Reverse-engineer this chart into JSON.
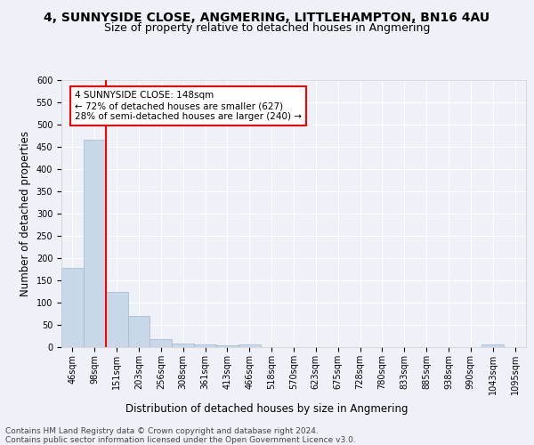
{
  "title": "4, SUNNYSIDE CLOSE, ANGMERING, LITTLEHAMPTON, BN16 4AU",
  "subtitle": "Size of property relative to detached houses in Angmering",
  "xlabel": "Distribution of detached houses by size in Angmering",
  "ylabel": "Number of detached properties",
  "bin_labels": [
    "46sqm",
    "98sqm",
    "151sqm",
    "203sqm",
    "256sqm",
    "308sqm",
    "361sqm",
    "413sqm",
    "466sqm",
    "518sqm",
    "570sqm",
    "623sqm",
    "675sqm",
    "728sqm",
    "780sqm",
    "833sqm",
    "885sqm",
    "938sqm",
    "990sqm",
    "1043sqm",
    "1095sqm"
  ],
  "bar_heights": [
    178,
    467,
    125,
    70,
    18,
    9,
    7,
    5,
    6,
    0,
    0,
    0,
    0,
    0,
    0,
    0,
    0,
    0,
    0,
    6,
    0
  ],
  "bar_color": "#c8d8e8",
  "bar_edge_color": "#a0b8cc",
  "property_line_x": 2,
  "property_sqm": 148,
  "annotation_text": "4 SUNNYSIDE CLOSE: 148sqm\n← 72% of detached houses are smaller (627)\n28% of semi-detached houses are larger (240) →",
  "annotation_box_color": "white",
  "annotation_box_edge_color": "red",
  "vline_color": "red",
  "ylim": [
    0,
    600
  ],
  "yticks": [
    0,
    50,
    100,
    150,
    200,
    250,
    300,
    350,
    400,
    450,
    500,
    550,
    600
  ],
  "background_color": "#eef2f8",
  "grid_color": "white",
  "footnote": "Contains HM Land Registry data © Crown copyright and database right 2024.\nContains public sector information licensed under the Open Government Licence v3.0.",
  "title_fontsize": 10,
  "subtitle_fontsize": 9,
  "xlabel_fontsize": 8.5,
  "ylabel_fontsize": 8.5,
  "tick_fontsize": 7,
  "annotation_fontsize": 7.5,
  "footnote_fontsize": 6.5
}
